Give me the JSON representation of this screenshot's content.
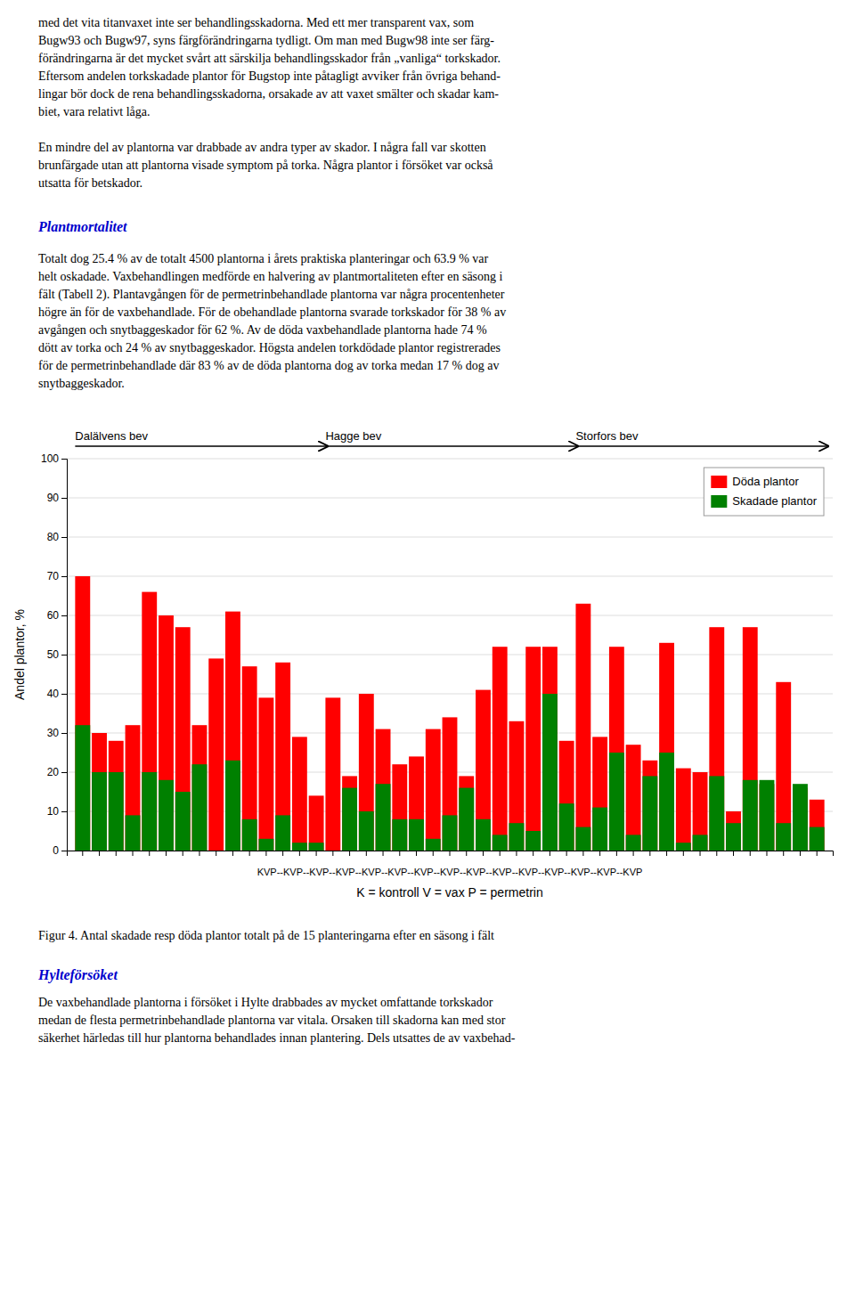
{
  "top_paragraphs": [
    [
      "med det vita titanvaxet inte ser behandlingsskadorna. Med ett mer transparent vax, som",
      "Bugw93 och Bugw97, syns färgförändringarna tydligt. Om man med Bugw98 inte ser färg-",
      "förändringarna är det mycket svårt att särskilja behandlingsskador från „vanliga“ torkskador.",
      "Eftersom andelen torkskadade plantor för Bugstop inte påtagligt avviker från övriga behand-",
      "lingar bör dock de rena behandlingsskadorna, orsakade av att vaxet smälter och skadar kam-",
      "biet, vara relativt låga."
    ],
    [
      "En mindre del av plantorna var drabbade av andra typer av skador. I några fall var skotten",
      "brunfärgade utan att plantorna visade symptom på torka. Några plantor i försöket var också",
      "utsatta för betskador."
    ]
  ],
  "section_header1": "Plantmortalitet",
  "body_lines": [
    "Totalt dog 25.4 % av de totalt 4500 plantorna i årets praktiska planteringar och 63.9 % var",
    "helt oskadade. Vaxbehandlingen medförde en halvering av plantmortaliteten efter en säsong i",
    "fält (Tabell 2). Plantavgången för de permetrinbehandlade plantorna var några procentenheter",
    "högre än för de vaxbehandlade. För de obehandlade plantorna svarade torkskador för 38 % av",
    "avgången och snytbaggeskador för 62 %. Av de döda vaxbehandlade plantorna hade 74 %",
    "dött av torka och 24 % av snytbaggeskador. Högsta andelen torkdödade plantor registrerades",
    "för de permetrinbehandlade där 83 % av de döda plantorna dog av torka medan 17 % dog av",
    "snytbaggeskador."
  ],
  "chart_data": {
    "type": "bar",
    "ylabel": "Andel plantor, %",
    "xlabel": [
      "KVP--KVP--KVP--KVP--KVP--KVP--KVP--KVP--KVP--KVP--KVP--KVP--KVP--KVP--KVP",
      "K = kontroll  V = vax  P = permetrin"
    ],
    "annotations": [
      "Dalälvens bev",
      "Hagge bev",
      "Storfors bev"
    ],
    "categories": [
      null,
      null,
      null,
      null,
      null,
      null,
      null,
      null,
      null,
      null,
      null,
      null,
      null,
      null,
      null,
      null,
      null,
      null,
      null,
      null,
      null,
      null,
      null,
      null,
      null,
      null,
      null,
      null,
      null,
      null,
      null,
      null,
      null,
      null,
      null,
      null,
      null,
      null,
      null,
      null,
      null,
      null,
      null,
      null,
      null
    ],
    "series": [
      {
        "name": "Döda plantor",
        "color": "#FF0000",
        "values": [
          70,
          30,
          28,
          32,
          66,
          60,
          57,
          32,
          49,
          61,
          47,
          39,
          48,
          29,
          14,
          39,
          19,
          40,
          31,
          22,
          24,
          31,
          34,
          19,
          41,
          52,
          33,
          52,
          52,
          28,
          63,
          29,
          52,
          27,
          23,
          53,
          21,
          20,
          57,
          10,
          57,
          17,
          43,
          16,
          13
        ]
      },
      {
        "name": "Skadade plantor",
        "color": "#008000",
        "values": [
          32,
          20,
          20,
          9,
          20,
          18,
          15,
          22,
          0,
          23,
          8,
          3,
          9,
          2,
          2,
          0,
          16,
          10,
          17,
          8,
          8,
          3,
          9,
          16,
          8,
          4,
          7,
          5,
          40,
          12,
          6,
          11,
          25,
          4,
          19,
          25,
          2,
          4,
          19,
          7,
          18,
          18,
          7,
          17,
          6
        ]
      }
    ],
    "ylim": [
      0,
      100
    ],
    "yticks": [
      0,
      10,
      20,
      30,
      40,
      50,
      60,
      70,
      80,
      90,
      100
    ],
    "grid": true,
    "legend": "upper right"
  },
  "caption": "Figur 4. Antal skadade resp döda plantor totalt på de 15 planteringarna efter en säsong i fält",
  "section_header2": "Hylteförsöket",
  "footer_lines": [
    "De vaxbehandlade plantorna i försöket i Hylte drabbades av mycket omfattande torkskador",
    "medan de flesta permetrinbehandlade plantorna var vitala. Orsaken till skadorna kan med stor",
    "säkerhet härledas till hur plantorna behandlades innan plantering. Dels utsattes de av vaxbehad-"
  ]
}
